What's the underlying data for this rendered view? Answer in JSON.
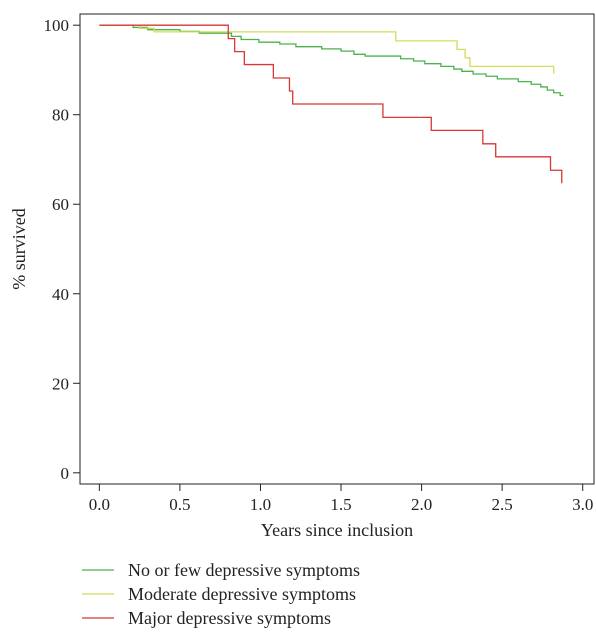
{
  "chart_data": {
    "type": "line",
    "title": "",
    "xlabel": "Years since inclusion",
    "ylabel": "% survived",
    "xlim": [
      -0.12,
      3.07
    ],
    "ylim": [
      -2.5,
      102.5
    ],
    "xticks": [
      0.0,
      0.5,
      1.0,
      1.5,
      2.0,
      2.5,
      3.0
    ],
    "xtick_labels": [
      "0.0",
      "0.5",
      "1.0",
      "1.5",
      "2.0",
      "2.5",
      "3.0"
    ],
    "yticks": [
      0,
      20,
      40,
      60,
      80,
      100
    ],
    "ytick_labels": [
      "0",
      "20",
      "40",
      "60",
      "80",
      "100"
    ],
    "grid": false,
    "legend_position": "bottom-left",
    "step": true,
    "series": [
      {
        "name": "No or few depressive symptoms",
        "color": "#4db24d",
        "points": [
          [
            0,
            100
          ],
          [
            0.21,
            100
          ],
          [
            0.21,
            99.5
          ],
          [
            0.3,
            99.5
          ],
          [
            0.3,
            99
          ],
          [
            0.5,
            99
          ],
          [
            0.5,
            98.6
          ],
          [
            0.62,
            98.6
          ],
          [
            0.62,
            98.2
          ],
          [
            0.82,
            98.2
          ],
          [
            0.82,
            97.5
          ],
          [
            0.88,
            97.5
          ],
          [
            0.88,
            96.8
          ],
          [
            0.99,
            96.8
          ],
          [
            0.99,
            96.2
          ],
          [
            1.12,
            96.2
          ],
          [
            1.12,
            95.8
          ],
          [
            1.22,
            95.8
          ],
          [
            1.22,
            95.2
          ],
          [
            1.38,
            95.2
          ],
          [
            1.38,
            94.7
          ],
          [
            1.5,
            94.7
          ],
          [
            1.5,
            94.2
          ],
          [
            1.58,
            94.2
          ],
          [
            1.58,
            93.5
          ],
          [
            1.65,
            93.5
          ],
          [
            1.65,
            93.1
          ],
          [
            1.87,
            93.1
          ],
          [
            1.87,
            92.5
          ],
          [
            1.95,
            92.5
          ],
          [
            1.95,
            92
          ],
          [
            2.02,
            92
          ],
          [
            2.02,
            91.4
          ],
          [
            2.12,
            91.4
          ],
          [
            2.12,
            90.8
          ],
          [
            2.2,
            90.8
          ],
          [
            2.2,
            90.2
          ],
          [
            2.25,
            90.2
          ],
          [
            2.25,
            89.7
          ],
          [
            2.32,
            89.7
          ],
          [
            2.32,
            89.1
          ],
          [
            2.4,
            89.1
          ],
          [
            2.4,
            88.6
          ],
          [
            2.47,
            88.6
          ],
          [
            2.47,
            88
          ],
          [
            2.6,
            88
          ],
          [
            2.6,
            87.4
          ],
          [
            2.68,
            87.4
          ],
          [
            2.68,
            86.8
          ],
          [
            2.74,
            86.8
          ],
          [
            2.74,
            86.2
          ],
          [
            2.78,
            86.2
          ],
          [
            2.78,
            85.5
          ],
          [
            2.82,
            85.5
          ],
          [
            2.82,
            84.9
          ],
          [
            2.86,
            84.9
          ],
          [
            2.86,
            84.3
          ],
          [
            2.88,
            84.3
          ]
        ]
      },
      {
        "name": "Moderate depressive symptoms",
        "color": "#d4dc5a",
        "points": [
          [
            0,
            100
          ],
          [
            0.25,
            100
          ],
          [
            0.25,
            99.3
          ],
          [
            0.34,
            99.3
          ],
          [
            0.34,
            98.5
          ],
          [
            1.84,
            98.5
          ],
          [
            1.84,
            96.5
          ],
          [
            2.22,
            96.5
          ],
          [
            2.22,
            94.6
          ],
          [
            2.27,
            94.6
          ],
          [
            2.27,
            92.7
          ],
          [
            2.3,
            92.7
          ],
          [
            2.3,
            90.8
          ],
          [
            2.82,
            90.8
          ],
          [
            2.82,
            89.2
          ]
        ]
      },
      {
        "name": "Major depressive symptoms",
        "color": "#d93636",
        "points": [
          [
            0,
            100
          ],
          [
            0.8,
            100
          ],
          [
            0.8,
            97
          ],
          [
            0.84,
            97
          ],
          [
            0.84,
            94.1
          ],
          [
            0.9,
            94.1
          ],
          [
            0.9,
            91.2
          ],
          [
            1.08,
            91.2
          ],
          [
            1.08,
            88.2
          ],
          [
            1.18,
            88.2
          ],
          [
            1.18,
            85.3
          ],
          [
            1.2,
            85.3
          ],
          [
            1.2,
            82.4
          ],
          [
            1.76,
            82.4
          ],
          [
            1.76,
            79.4
          ],
          [
            2.06,
            79.4
          ],
          [
            2.06,
            76.5
          ],
          [
            2.38,
            76.5
          ],
          [
            2.38,
            73.5
          ],
          [
            2.46,
            73.5
          ],
          [
            2.46,
            70.6
          ],
          [
            2.8,
            70.6
          ],
          [
            2.8,
            67.6
          ],
          [
            2.87,
            67.6
          ],
          [
            2.87,
            64.7
          ]
        ]
      }
    ]
  }
}
